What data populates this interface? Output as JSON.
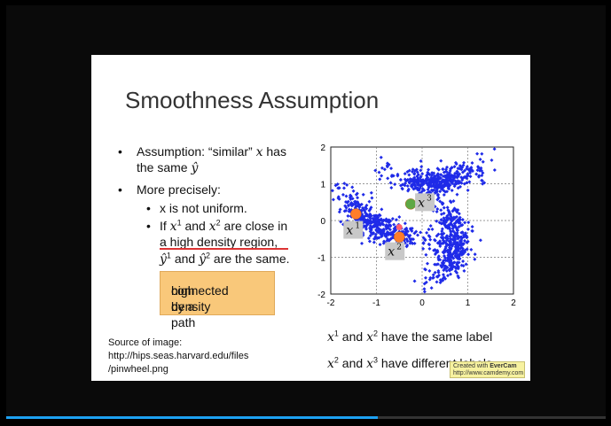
{
  "slide": {
    "title": "Smoothness Assumption",
    "bullets": {
      "b1_pre": "Assumption: “similar” ",
      "b1_x": "x",
      "b1_post": " has",
      "b1_line2_pre": "the same ",
      "b1_yhat": "ŷ",
      "b2": "More precisely:",
      "s1": "x is not uniform.",
      "s2_if": "If ",
      "s2_and": " and ",
      "s2_close": " are close in",
      "s2_line2": "a high density region,",
      "s2_line3_and": " and ",
      "s2_line3_post": " are the same."
    },
    "math": {
      "x": "x",
      "yhat": "ŷ",
      "sup1": "1",
      "sup2": "2",
      "sup3": "3"
    },
    "callout": {
      "line1": "connected by a",
      "line2": "high density path"
    },
    "source": {
      "line1": "Source of image:",
      "line2": "http://hips.seas.harvard.edu/files",
      "line3": "/pinwheel.png"
    },
    "captions": {
      "c1_and": " and ",
      "c1_post": " have the same label",
      "c2_and": " and ",
      "c2_post": " have different labels"
    }
  },
  "chart_data": {
    "type": "scatter",
    "xlim": [
      -2,
      2
    ],
    "ylim": [
      -2,
      2
    ],
    "xticks": [
      "-2",
      "-1",
      "0",
      "1",
      "2"
    ],
    "yticks": [
      "2",
      "1",
      "0",
      "-1",
      "-2"
    ],
    "grid": true,
    "point_color": "#1f2be8",
    "highlighted_points": [
      {
        "label": "x",
        "sup": "1",
        "x": -1.45,
        "y": 0.18,
        "color": "#ff7d2a"
      },
      {
        "label": "x",
        "sup": "2",
        "x": -0.5,
        "y": -0.45,
        "color": "#ff7d2a"
      },
      {
        "label": "x",
        "sup": "3",
        "x": -0.25,
        "y": 0.45,
        "color": "#5ea845"
      }
    ],
    "extra_marker": {
      "x": -0.5,
      "y": -0.18,
      "color": "#ff6070"
    }
  },
  "watermark": {
    "line1_pre": "Created with ",
    "brand": "EverCam",
    "line2": "http://www.camdemy.com"
  },
  "player": {
    "progress": 0.62,
    "color": "#1da1f2"
  }
}
